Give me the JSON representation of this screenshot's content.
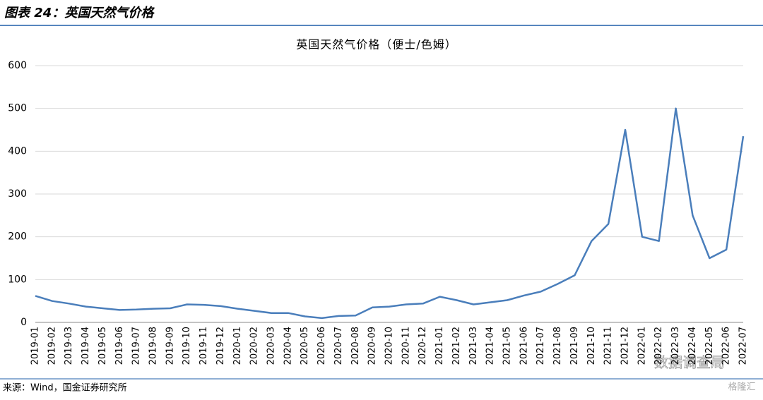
{
  "header": {
    "title": "图表 24：英国天然气价格"
  },
  "chart_data": {
    "type": "line",
    "title": "英国天然气价格（便士/色姆）",
    "x": [
      "2019-01",
      "2019-02",
      "2019-03",
      "2019-04",
      "2019-05",
      "2019-06",
      "2019-07",
      "2019-08",
      "2019-09",
      "2019-10",
      "2019-11",
      "2019-12",
      "2020-01",
      "2020-02",
      "2020-03",
      "2020-04",
      "2020-05",
      "2020-06",
      "2020-07",
      "2020-08",
      "2020-09",
      "2020-10",
      "2020-11",
      "2020-12",
      "2021-01",
      "2021-02",
      "2021-03",
      "2021-04",
      "2021-05",
      "2021-06",
      "2021-07",
      "2021-08",
      "2021-09",
      "2021-10",
      "2021-11",
      "2021-12",
      "2022-01",
      "2022-02",
      "2022-03",
      "2022-04",
      "2022-05",
      "2022-06",
      "2022-07"
    ],
    "series": [
      {
        "color": "#4a7ebb",
        "values": [
          62,
          50,
          44,
          37,
          33,
          29,
          30,
          32,
          33,
          42,
          41,
          38,
          32,
          27,
          22,
          22,
          14,
          10,
          15,
          16,
          35,
          37,
          42,
          44,
          60,
          52,
          42,
          47,
          52,
          63,
          72,
          90,
          110,
          190,
          230,
          450,
          200,
          190,
          500,
          250,
          150,
          170,
          435
        ]
      }
    ],
    "ylim": [
      0,
      600
    ],
    "yticks": [
      0,
      100,
      200,
      300,
      400,
      500,
      600
    ],
    "grid": true
  },
  "footer": {
    "source": "来源：Wind，国金证券研究所"
  },
  "watermarks": [
    "数据调查局",
    "格隆汇"
  ]
}
